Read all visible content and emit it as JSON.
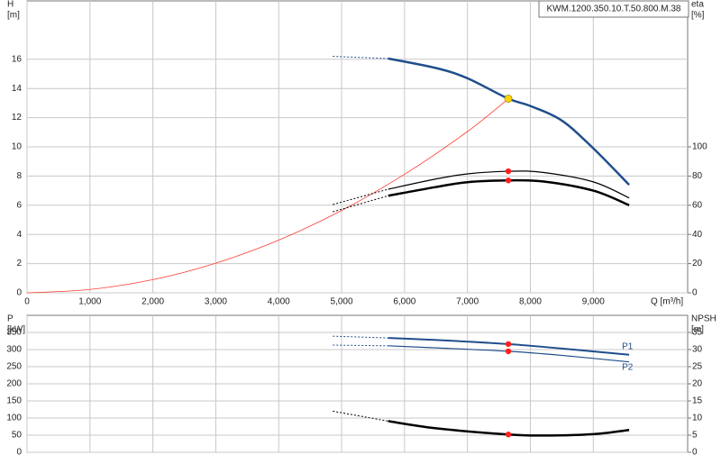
{
  "chart_data": [
    {
      "type": "line",
      "title": "KWM.1200.350.10.T.50.800.M.38",
      "y_label": "H",
      "y_unit": "[m]",
      "y2_label": "eta",
      "y2_unit": "[%]",
      "x_label": "Q [m³/h]",
      "xlim": [
        0,
        10500
      ],
      "xticks": [
        0,
        {
          "value": 1000,
          "label": "1,000"
        },
        {
          "value": 2000,
          "label": "2,000"
        },
        {
          "value": 3000,
          "label": "3,000"
        },
        {
          "value": 4000,
          "label": "4,000"
        },
        {
          "value": 5000,
          "label": "5,000"
        },
        {
          "value": 6000,
          "label": "6,000"
        },
        {
          "value": 7000,
          "label": "7,000"
        },
        {
          "value": 8000,
          "label": "8,000"
        },
        {
          "value": 9000,
          "label": "9,000"
        }
      ],
      "ylim": [
        0,
        20
      ],
      "yticks": [
        0,
        2,
        4,
        6,
        8,
        10,
        12,
        14,
        16
      ],
      "y2lim": [
        0,
        200
      ],
      "y2ticks": [
        0,
        20,
        40,
        60,
        80,
        100
      ],
      "grid": true,
      "series": [
        {
          "color": "#ff3b30",
          "width": 0.8,
          "style": "solid",
          "x": [
            0,
            1000,
            2000,
            3000,
            4000,
            5000,
            6000,
            7000,
            7650
          ],
          "values": [
            0,
            0.23,
            0.9,
            2.03,
            3.61,
            5.64,
            8.12,
            11.05,
            13.3
          ]
        },
        {
          "color": "#1f4e8c",
          "width": 1,
          "style": "dashed",
          "x": [
            4860,
            5740
          ],
          "values": [
            16.2,
            16.05
          ]
        },
        {
          "color": "#1f4e8c",
          "width": 2.5,
          "style": "solid",
          "x": [
            5740,
            6500,
            7000,
            7650,
            8000,
            8500,
            9000,
            9570
          ],
          "values": [
            16.05,
            15.4,
            14.7,
            13.3,
            12.8,
            11.8,
            9.9,
            7.4
          ]
        },
        {
          "color": "#000000",
          "width": 1,
          "style": "dashed",
          "axis": "y2",
          "x": [
            4860,
            5740
          ],
          "values": [
            60.5,
            71
          ]
        },
        {
          "color": "#000000",
          "width": 1.2,
          "style": "solid",
          "axis": "y2",
          "x": [
            5740,
            6500,
            7000,
            7650,
            8200,
            9000,
            9570
          ],
          "values": [
            71,
            78,
            81.5,
            83.3,
            82.5,
            76,
            65
          ]
        },
        {
          "color": "#000000",
          "width": 1,
          "style": "dashed",
          "axis": "y2",
          "x": [
            4860,
            5740
          ],
          "values": [
            55.5,
            66.5
          ]
        },
        {
          "color": "#000000",
          "width": 2.5,
          "style": "solid",
          "axis": "y2",
          "x": [
            5740,
            6500,
            7000,
            7650,
            8200,
            9000,
            9570
          ],
          "values": [
            66.5,
            72.5,
            75.8,
            77,
            76.3,
            70,
            60
          ]
        }
      ],
      "points": [
        {
          "x": 7650,
          "value": 13.3,
          "color": "#ffd700"
        },
        {
          "x": 7650,
          "value": 83.3,
          "axis": "y2",
          "color": "#ff2020"
        },
        {
          "x": 7650,
          "value": 77,
          "axis": "y2",
          "color": "#ff2020"
        }
      ]
    },
    {
      "type": "line",
      "y_label": "P",
      "y_unit": "[kW]",
      "y2_label": "NPSH",
      "y2_unit": "[m]",
      "xlim": [
        0,
        10500
      ],
      "xticks": [
        0,
        1000,
        2000,
        3000,
        4000,
        5000,
        6000,
        7000,
        8000,
        9000
      ],
      "ylim": [
        0,
        400
      ],
      "yticks": [
        0,
        50,
        100,
        150,
        200,
        250,
        300,
        350
      ],
      "y2lim": [
        0,
        40
      ],
      "y2ticks": [
        0,
        5,
        10,
        15,
        20,
        25,
        30,
        35
      ],
      "grid": true,
      "series": [
        {
          "color": "#1f4e8c",
          "width": 1,
          "style": "dashed",
          "x": [
            4860,
            5740
          ],
          "values": [
            339,
            334
          ]
        },
        {
          "name": "P1",
          "color": "#1f4e8c",
          "width": 2,
          "style": "solid",
          "x": [
            5740,
            6500,
            7650,
            8500,
            9570
          ],
          "values": [
            334,
            328,
            316,
            303,
            285
          ]
        },
        {
          "color": "#1f4e8c",
          "width": 1,
          "style": "dashed",
          "x": [
            4860,
            5740
          ],
          "values": [
            313,
            311
          ]
        },
        {
          "name": "P2",
          "color": "#1f4e8c",
          "width": 1.2,
          "style": "solid",
          "x": [
            5740,
            6500,
            7650,
            8500,
            9570
          ],
          "values": [
            311,
            305,
            295,
            283,
            264
          ]
        },
        {
          "color": "#000000",
          "width": 1,
          "style": "dashed",
          "axis": "y2",
          "x": [
            4860,
            5740
          ],
          "values": [
            12,
            9.1
          ]
        },
        {
          "color": "#000000",
          "width": 2.5,
          "style": "solid",
          "axis": "y2",
          "x": [
            5740,
            6500,
            7650,
            8200,
            9000,
            9570
          ],
          "values": [
            9.1,
            7,
            5.2,
            4.9,
            5.3,
            6.5
          ]
        }
      ],
      "points": [
        {
          "x": 7650,
          "value": 316,
          "color": "#ff2020"
        },
        {
          "x": 7650,
          "value": 295,
          "color": "#ff2020"
        },
        {
          "x": 7650,
          "value": 5.2,
          "axis": "y2",
          "color": "#ff2020"
        }
      ]
    }
  ]
}
